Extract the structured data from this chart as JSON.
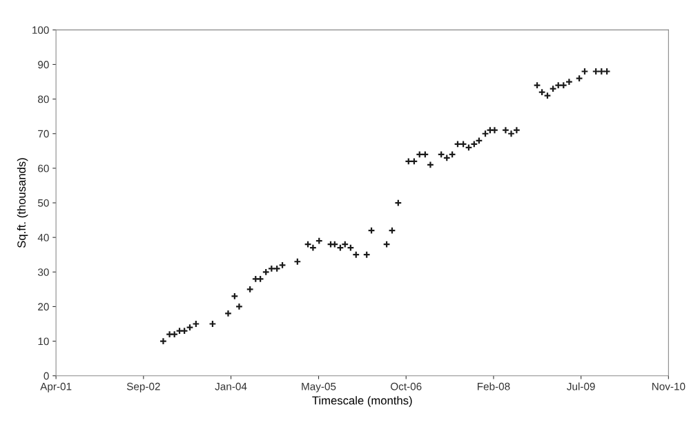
{
  "chart_data": {
    "type": "scatter",
    "xlabel": "Timescale (months)",
    "ylabel": "Sq.ft. (thousands)",
    "x": [
      "2002-12-24",
      "2003-01-29",
      "2003-02-26",
      "2003-03-27",
      "2003-04-24",
      "2003-05-25",
      "2003-06-29",
      "2003-10-02",
      "2003-12-30",
      "2004-02-05",
      "2004-03-02",
      "2004-05-03",
      "2004-06-04",
      "2004-07-01",
      "2004-08-02",
      "2004-09-03",
      "2004-10-04",
      "2004-11-04",
      "2005-01-29",
      "2005-03-30",
      "2005-04-28",
      "2005-06-02",
      "2005-08-07",
      "2005-08-30",
      "2005-10-01",
      "2005-10-28",
      "2005-11-29",
      "2005-12-30",
      "2006-03-01",
      "2006-03-28",
      "2006-06-23",
      "2006-07-24",
      "2006-08-28",
      "2006-10-26",
      "2006-11-27",
      "2006-12-28",
      "2007-01-29",
      "2007-02-28",
      "2007-05-01",
      "2007-06-02",
      "2007-07-03",
      "2007-08-03",
      "2007-09-04",
      "2007-10-05",
      "2007-11-05",
      "2007-12-03",
      "2008-01-08",
      "2008-02-04",
      "2008-03-01",
      "2008-05-03",
      "2008-06-04",
      "2008-07-05",
      "2008-10-30",
      "2008-11-27",
      "2008-12-28",
      "2009-01-29",
      "2009-02-28",
      "2009-03-30",
      "2009-05-01",
      "2009-06-28",
      "2009-07-29",
      "2009-10-01",
      "2009-11-02",
      "2009-12-03"
    ],
    "series": [
      {
        "color": "#1a1a1a",
        "values": [
          10,
          12,
          12,
          13,
          13,
          14,
          15,
          15,
          18,
          23,
          20,
          25,
          28,
          28,
          30,
          31,
          31,
          32,
          33,
          38,
          37,
          39,
          38,
          38,
          37,
          38,
          37,
          35,
          35,
          42,
          38,
          42,
          50,
          62,
          62,
          64,
          64,
          61,
          64,
          63,
          64,
          67,
          67,
          66,
          67,
          68,
          70,
          71,
          71,
          71,
          70,
          71,
          84,
          82,
          81,
          83,
          84,
          84,
          85,
          86,
          88,
          88,
          88,
          88
        ]
      }
    ],
    "xlim": [
      "2001-04-20",
      "2010-11-20"
    ],
    "xticks": [
      {
        "value": "2001-04-20",
        "label": "Apr-01"
      },
      {
        "value": "2002-09-02",
        "label": "Sep-02"
      },
      {
        "value": "2004-01-15",
        "label": "Jan-04"
      },
      {
        "value": "2005-05-30",
        "label": "May-05"
      },
      {
        "value": "2006-10-12",
        "label": "Oct-06"
      },
      {
        "value": "2008-02-24",
        "label": "Feb-08"
      },
      {
        "value": "2009-07-08",
        "label": "Jul-09"
      },
      {
        "value": "2010-11-20",
        "label": "Nov-10"
      }
    ],
    "ylim": [
      0,
      100
    ],
    "yticks": [
      0,
      10,
      20,
      30,
      40,
      50,
      60,
      70,
      80,
      90,
      100
    ],
    "marker": "cross",
    "grid": false
  }
}
